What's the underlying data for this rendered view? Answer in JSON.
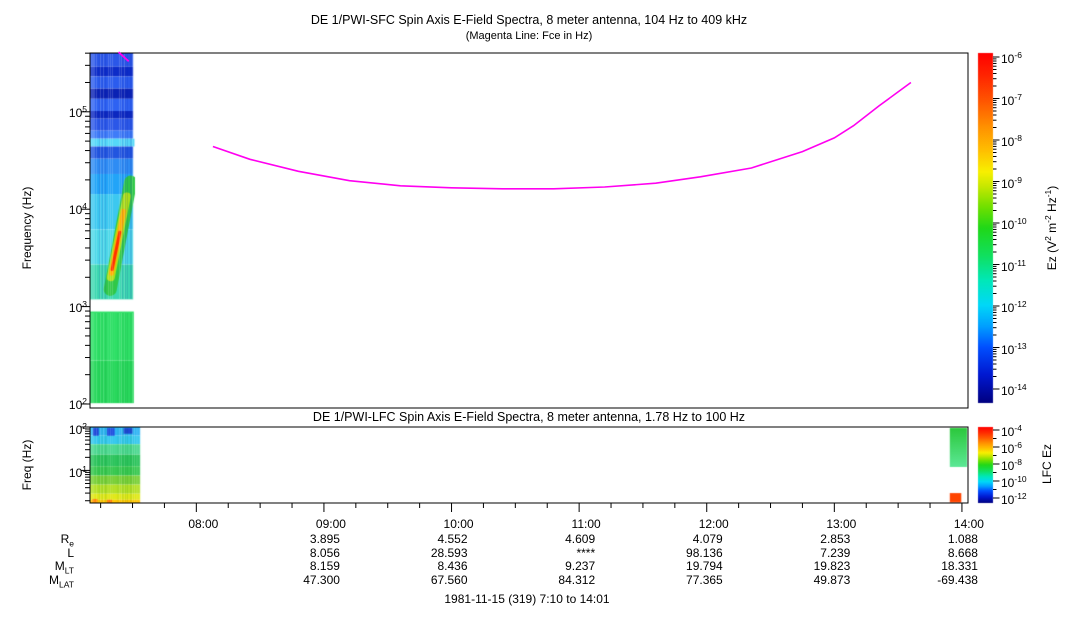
{
  "chart_data": {
    "footer": "1981-11-15 (319) 7:10 to 14:01",
    "colormap_stops": [
      [
        0.0,
        "#000080"
      ],
      [
        0.08,
        "#0018d0"
      ],
      [
        0.16,
        "#0050ff"
      ],
      [
        0.22,
        "#00a0ff"
      ],
      [
        0.28,
        "#00d8f8"
      ],
      [
        0.35,
        "#00e8b8"
      ],
      [
        0.42,
        "#10e060"
      ],
      [
        0.5,
        "#20d818"
      ],
      [
        0.56,
        "#70e000"
      ],
      [
        0.62,
        "#c8e800"
      ],
      [
        0.66,
        "#f8f000"
      ],
      [
        0.72,
        "#ffc000"
      ],
      [
        0.79,
        "#ff9000"
      ],
      [
        0.86,
        "#ff5800"
      ],
      [
        0.93,
        "#ff2800"
      ],
      [
        1.0,
        "#ff0000"
      ]
    ],
    "time_axis": {
      "start_hour": 7.16667,
      "end_hour": 14.01667,
      "minor_step_hours": 0.25,
      "major": [
        {
          "label": "08:00",
          "hour": 8
        },
        {
          "label": "09:00",
          "hour": 9
        },
        {
          "label": "10:00",
          "hour": 10
        },
        {
          "label": "11:00",
          "hour": 11
        },
        {
          "label": "12:00",
          "hour": 12
        },
        {
          "label": "13:00",
          "hour": 13
        },
        {
          "label": "14:00",
          "hour": 14
        }
      ]
    },
    "charts": [
      {
        "type": "spectrogram+line",
        "id": "sfc",
        "title": "DE 1/PWI-SFC  Spin Axis E-Field Spectra, 8 meter antenna, 104 Hz to 409 kHz",
        "subtitle": "(Magenta Line: Fce in Hz)",
        "ylabel": "Frequency (Hz)",
        "freq_range_hz": [
          102,
          409000
        ],
        "ytick_exponents": [
          5,
          4,
          3,
          2
        ],
        "colorbar": {
          "label_segments": [
            [
              "t",
              "Ez (V"
            ],
            [
              "sup",
              "2"
            ],
            [
              "t",
              " m"
            ],
            [
              "sup",
              "-2"
            ],
            [
              "t",
              " Hz"
            ],
            [
              "sup",
              "-1"
            ],
            [
              "t",
              ")"
            ]
          ],
          "tick_exponents": [
            -6,
            -7,
            -8,
            -9,
            -10,
            -11,
            -12,
            -13,
            -14
          ],
          "log_range": [
            -14,
            -6
          ]
        },
        "fce_line": {
          "color": "#ff00f0",
          "lead_points": [
            [
              7.39,
              410000
            ],
            [
              7.47,
              330000
            ]
          ],
          "points": [
            [
              8.13,
              44000
            ],
            [
              8.42,
              32500
            ],
            [
              8.8,
              24500
            ],
            [
              9.2,
              19600
            ],
            [
              9.6,
              17400
            ],
            [
              10.0,
              16600
            ],
            [
              10.4,
              16200
            ],
            [
              10.8,
              16200
            ],
            [
              11.2,
              16900
            ],
            [
              11.6,
              18500
            ],
            [
              11.95,
              21500
            ],
            [
              12.35,
              26500
            ],
            [
              12.75,
              39000
            ],
            [
              13.0,
              54000
            ],
            [
              13.15,
              72000
            ],
            [
              13.35,
              115000
            ],
            [
              13.5,
              160000
            ],
            [
              13.6,
              200000
            ]
          ]
        },
        "spectrogram": {
          "t_start": 7.16667,
          "t_end": 7.505,
          "bands": [
            {
              "f1": 410000,
              "f0": 290000,
              "c": "#2b57e8"
            },
            {
              "f1": 290000,
              "f0": 230000,
              "c": "#0d2cc8"
            },
            {
              "f1": 230000,
              "f0": 173000,
              "c": "#2b5cee"
            },
            {
              "f1": 173000,
              "f0": 136000,
              "c": "#0a22b4"
            },
            {
              "f1": 136000,
              "f0": 102000,
              "c": "#2e62f2"
            },
            {
              "f1": 102000,
              "f0": 85000,
              "c": "#0c28c0"
            },
            {
              "f1": 85000,
              "f0": 64000,
              "c": "#2b57e8"
            },
            {
              "f1": 64000,
              "f0": 53000,
              "c": "#3f7cf8"
            },
            {
              "f1": 53000,
              "f0": 44000,
              "c": "#55d8f8",
              "te": 7.515
            },
            {
              "f1": 44000,
              "f0": 33000,
              "c": "#2255e0"
            },
            {
              "f1": 33000,
              "f0": 23000,
              "c": "#2e8cf4"
            },
            {
              "f1": 23000,
              "f0": 14300,
              "c": "#22a4f8"
            },
            {
              "f1": 14300,
              "f0": 6200,
              "c": "#3cc8f0"
            },
            {
              "f1": 6200,
              "f0": 2700,
              "c": "#4cd8e8"
            },
            {
              "f1": 2700,
              "f0": 1180,
              "c": "#3cd8b0"
            },
            {
              "f1": 1180,
              "f0": 890,
              "c": "#ffffff"
            },
            {
              "f1": 890,
              "f0": 280,
              "c": "#2ee066",
              "te": 7.51
            },
            {
              "f1": 280,
              "f0": 102,
              "c": "#28d85c",
              "te": 7.51
            }
          ],
          "streak": [
            {
              "p1": [
                7.325,
                1500
              ],
              "p2": [
                7.485,
                19000
              ],
              "w": 13,
              "c": "#30c848"
            },
            {
              "p1": [
                7.33,
                2000
              ],
              "p2": [
                7.455,
                13500
              ],
              "w": 8,
              "c": "#b0e018"
            },
            {
              "p1": [
                7.335,
                2200
              ],
              "p2": [
                7.43,
                9500
              ],
              "w": 5,
              "c": "#ffb000"
            },
            {
              "p1": [
                7.34,
                2400
              ],
              "p2": [
                7.4,
                5800
              ],
              "w": 3,
              "c": "#ff3000"
            }
          ]
        }
      },
      {
        "type": "spectrogram",
        "id": "lfc",
        "title": "DE 1/PWI-LFC  Spin Axis E-Field Spectra, 8 meter antenna, 1.78 Hz to 100 Hz",
        "ylabel": "Freq (Hz)",
        "freq_range_hz": [
          1.78,
          100
        ],
        "ytick_exponents": [
          2,
          1
        ],
        "colorbar": {
          "label_segments": [
            [
              "t",
              "LFC Ez"
            ]
          ],
          "tick_exponents": [
            -4,
            -6,
            -8,
            -10,
            -12
          ],
          "minor_exponents": [
            -5,
            -7,
            -9,
            -11
          ],
          "log_range": [
            -12,
            -4
          ]
        },
        "spectrogram": {
          "t_start": 7.16667,
          "t_end": 7.56,
          "bands": [
            {
              "f1": 100,
              "f0": 63,
              "c": "#2fb4f4"
            },
            {
              "f1": 63,
              "f0": 40,
              "c": "#35c8ee"
            },
            {
              "f1": 40,
              "f0": 23,
              "c": "#4cd890"
            },
            {
              "f1": 23,
              "f0": 12.5,
              "c": "#2cc45c"
            },
            {
              "f1": 12.5,
              "f0": 7.6,
              "c": "#38c850"
            },
            {
              "f1": 7.6,
              "f0": 4.7,
              "c": "#7ad038"
            },
            {
              "f1": 4.7,
              "f0": 2.9,
              "c": "#b4e026"
            },
            {
              "f1": 2.9,
              "f0": 2.1,
              "c": "#e0e818"
            },
            {
              "f1": 2.1,
              "f0": 1.78,
              "c": "#ffc400"
            }
          ],
          "patches": [
            {
              "t0": 7.19,
              "t1": 7.235,
              "f0": 63,
              "f1": 100,
              "c": "#1d46d8"
            },
            {
              "t0": 7.3,
              "t1": 7.36,
              "f0": 63,
              "f1": 100,
              "c": "#2050e0"
            },
            {
              "t0": 7.43,
              "t1": 7.5,
              "f0": 70,
              "f1": 100,
              "c": "#1d46d8"
            },
            {
              "t0": 7.185,
              "t1": 7.225,
              "f0": 1.78,
              "f1": 2.2,
              "c": "#ff8800"
            },
            {
              "t0": 7.3,
              "t1": 7.34,
              "f0": 1.78,
              "f1": 2.1,
              "c": "#ff7700"
            },
            {
              "t0": 13.905,
              "t1": 14.04,
              "f0": 12,
              "f1": 100,
              "c": "#2cc83c",
              "grad": "#5ce896"
            },
            {
              "t0": 13.905,
              "t1": 13.995,
              "f0": 1.78,
              "f1": 3.0,
              "c": "#ff4400"
            }
          ]
        }
      }
    ],
    "ephemeris_table": {
      "columns": [
        "08:00",
        "09:00",
        "10:00",
        "11:00",
        "12:00",
        "13:00",
        "14:00"
      ],
      "rows": [
        {
          "name": "Re",
          "label_segments": [
            [
              "t",
              "R"
            ],
            [
              "sub",
              "e"
            ]
          ],
          "values": [
            "",
            "3.895",
            "4.552",
            "4.609",
            "4.079",
            "2.853",
            "1.088"
          ]
        },
        {
          "name": "L",
          "label_segments": [
            [
              "t",
              "L"
            ]
          ],
          "values": [
            "",
            "8.056",
            "28.593",
            "****",
            "98.136",
            "7.239",
            "8.668"
          ]
        },
        {
          "name": "MLT",
          "label_segments": [
            [
              "t",
              "M"
            ],
            [
              "sub",
              "LT"
            ]
          ],
          "values": [
            "",
            "8.159",
            "8.436",
            "9.237",
            "19.794",
            "19.823",
            "18.331"
          ]
        },
        {
          "name": "MLAT",
          "label_segments": [
            [
              "t",
              "M"
            ],
            [
              "sub",
              "LAT"
            ]
          ],
          "values": [
            "",
            "47.300",
            "67.560",
            "84.312",
            "77.365",
            "49.873",
            "-69.438"
          ]
        }
      ]
    }
  }
}
